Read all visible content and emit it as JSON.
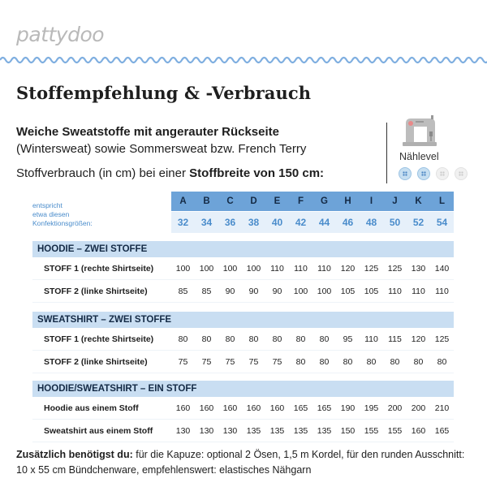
{
  "brand": {
    "logo_text": "pattydoo"
  },
  "header": {
    "title": "Stoffempfehlung & -Verbrauch"
  },
  "intro": {
    "line1": "Weiche Sweatstoffe mit angerauter Rückseite",
    "line2": "(Wintersweat) sowie Sommersweat bzw. French Terry",
    "usage_prefix": "Stoffverbrauch (in cm) bei einer ",
    "usage_bold": "Stoffbreite von 150 cm:"
  },
  "level": {
    "label": "Nählevel",
    "icon": "sewing-machine-icon",
    "value": 2,
    "max": 5,
    "on_color": "#c7dff1",
    "off_color": "#f1f1f1"
  },
  "table": {
    "size_label_lines": [
      "entspricht",
      "etwa diesen",
      "Konfektionsgrößen:"
    ],
    "letters": [
      "A",
      "B",
      "C",
      "D",
      "E",
      "F",
      "G",
      "H",
      "I",
      "J",
      "K",
      "L"
    ],
    "sizes": [
      "32",
      "34",
      "36",
      "38",
      "40",
      "42",
      "44",
      "46",
      "48",
      "50",
      "52",
      "54"
    ],
    "sections": [
      {
        "title": "HOODIE – ZWEI STOFFE",
        "rows": [
          {
            "label": "STOFF 1 (rechte Shirtseite)",
            "values": [
              "100",
              "100",
              "100",
              "100",
              "110",
              "110",
              "110",
              "120",
              "125",
              "125",
              "130",
              "140"
            ]
          },
          {
            "label": "STOFF 2 (linke Shirtseite)",
            "values": [
              "85",
              "85",
              "90",
              "90",
              "90",
              "100",
              "100",
              "105",
              "105",
              "110",
              "110",
              "110"
            ]
          }
        ]
      },
      {
        "title": "SWEATSHIRT – ZWEI STOFFE",
        "rows": [
          {
            "label": "STOFF 1 (rechte Shirtseite)",
            "values": [
              "80",
              "80",
              "80",
              "80",
              "80",
              "80",
              "80",
              "95",
              "110",
              "115",
              "120",
              "125"
            ]
          },
          {
            "label": "STOFF 2 (linke Shirtseite)",
            "values": [
              "75",
              "75",
              "75",
              "75",
              "75",
              "80",
              "80",
              "80",
              "80",
              "80",
              "80",
              "80"
            ]
          }
        ]
      },
      {
        "title": "HOODIE/SWEATSHIRT – EIN STOFF",
        "rows": [
          {
            "label": "Hoodie aus einem Stoff",
            "values": [
              "160",
              "160",
              "160",
              "160",
              "160",
              "165",
              "165",
              "190",
              "195",
              "200",
              "200",
              "210"
            ]
          },
          {
            "label": "Sweatshirt aus einem Stoff",
            "values": [
              "130",
              "130",
              "130",
              "135",
              "135",
              "135",
              "135",
              "150",
              "155",
              "155",
              "160",
              "165"
            ]
          }
        ]
      }
    ]
  },
  "footer": {
    "bold": "Zusätzlich benötigst du:",
    "text": " für die Kapuze: optional 2 Ösen, 1,5 m Kordel, für den runden Ausschnitt: 10 x 55 cm Bündchenware, empfehlenswert: elastisches Nähgarn"
  },
  "colors": {
    "accent": "#6da3d8",
    "accent_light": "#e6f0fa",
    "section_bg": "#c9def2",
    "wave": "#7eaee0",
    "size_text": "#4a8ccb"
  }
}
